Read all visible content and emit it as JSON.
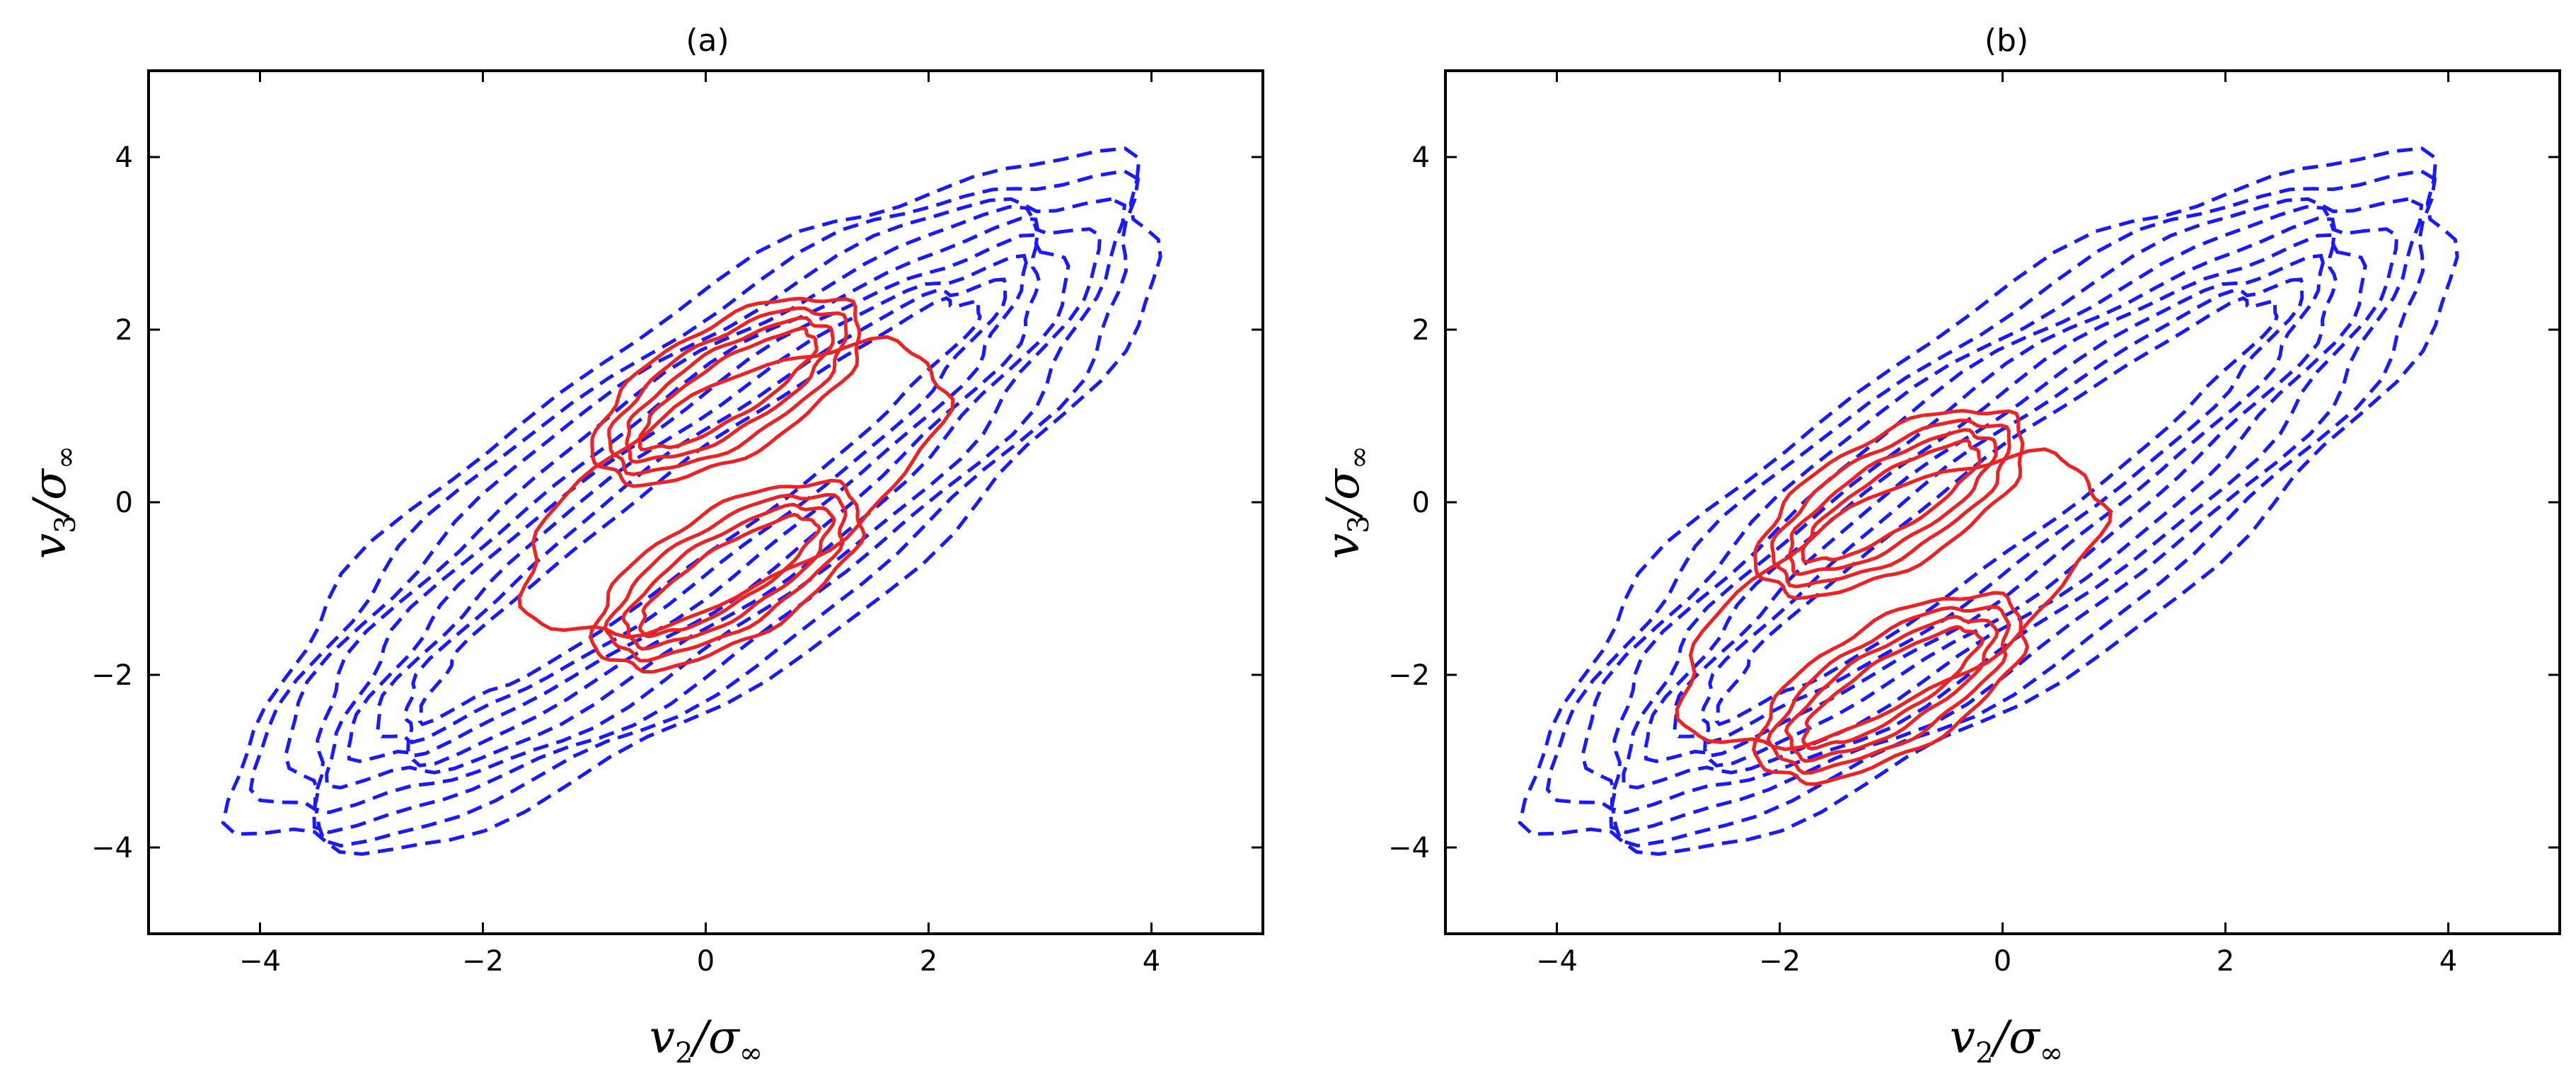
{
  "chart_data": [
    {
      "type": "contour",
      "title": "(a)",
      "xlabel": "v_2/σ_∞",
      "ylabel": "v_3/σ_∞",
      "xlim": [
        -5,
        5
      ],
      "ylim": [
        -5,
        5
      ],
      "xticks": [
        -4,
        -2,
        0,
        2,
        4
      ],
      "yticks": [
        -4,
        -2,
        0,
        2,
        4
      ],
      "series": [
        {
          "name": "blue-dashed",
          "style": "dashed",
          "color": "#1a1aff",
          "contours": [
            {
              "center": [
                -0.05,
                -0.05
              ],
              "angle": 44,
              "semi_major": 5.45,
              "semi_minor": 1.85
            },
            {
              "center": [
                -0.05,
                -0.05
              ],
              "angle": 44,
              "semi_major": 5.2,
              "semi_minor": 1.66
            },
            {
              "center": [
                -0.05,
                -0.05
              ],
              "angle": 44,
              "semi_major": 4.95,
              "semi_minor": 1.48
            },
            {
              "center": [
                -0.05,
                -0.05
              ],
              "angle": 44,
              "semi_major": 4.7,
              "semi_minor": 1.3
            },
            {
              "center": [
                -0.05,
                -0.05
              ],
              "angle": 44,
              "semi_major": 4.45,
              "semi_minor": 1.12
            },
            {
              "center": [
                -0.05,
                -0.05
              ],
              "angle": 44,
              "semi_major": 4.2,
              "semi_minor": 0.95
            },
            {
              "center": [
                -0.05,
                -0.05
              ],
              "angle": 44,
              "semi_major": 3.95,
              "semi_minor": 0.78
            },
            {
              "center": [
                -0.05,
                -0.05
              ],
              "angle": 44,
              "semi_major": 3.7,
              "semi_minor": 0.62
            },
            {
              "center": [
                -0.05,
                -0.05
              ],
              "angle": 44,
              "semi_major": 3.45,
              "semi_minor": 0.46
            }
          ]
        },
        {
          "name": "red-solid",
          "style": "solid",
          "color": "#ee2222",
          "contours": [
            {
              "center": [
                0.2,
                1.3
              ],
              "angle": 40,
              "semi_major": 1.45,
              "semi_minor": 0.7
            },
            {
              "center": [
                0.2,
                1.3
              ],
              "angle": 40,
              "semi_major": 1.3,
              "semi_minor": 0.56
            },
            {
              "center": [
                0.2,
                1.3
              ],
              "angle": 40,
              "semi_major": 1.15,
              "semi_minor": 0.43
            },
            {
              "center": [
                0.2,
                1.3
              ],
              "angle": 40,
              "semi_major": 1.0,
              "semi_minor": 0.3
            },
            {
              "center": [
                0.2,
                -0.85
              ],
              "angle": 40,
              "semi_major": 1.45,
              "semi_minor": 0.7
            },
            {
              "center": [
                0.2,
                -0.85
              ],
              "angle": 40,
              "semi_major": 1.3,
              "semi_minor": 0.56
            },
            {
              "center": [
                0.2,
                -0.85
              ],
              "angle": 40,
              "semi_major": 1.15,
              "semi_minor": 0.43
            },
            {
              "center": [
                0.2,
                -0.85
              ],
              "angle": 40,
              "semi_major": 1.0,
              "semi_minor": 0.3
            },
            {
              "center": [
                0.25,
                0.15
              ],
              "angle": 40,
              "semi_major": 2.3,
              "semi_minor": 1.05
            }
          ]
        }
      ]
    },
    {
      "type": "contour",
      "title": "(b)",
      "xlabel": "v_2/σ_∞",
      "ylabel": "v_3/σ_∞",
      "xlim": [
        -5,
        5
      ],
      "ylim": [
        -5,
        5
      ],
      "xticks": [
        -4,
        -2,
        0,
        2,
        4
      ],
      "yticks": [
        -4,
        -2,
        0,
        2,
        4
      ],
      "series": [
        {
          "name": "blue-dashed",
          "style": "dashed",
          "color": "#1a1aff",
          "contours": [
            {
              "center": [
                -0.05,
                -0.05
              ],
              "angle": 44,
              "semi_major": 5.45,
              "semi_minor": 1.85
            },
            {
              "center": [
                -0.05,
                -0.05
              ],
              "angle": 44,
              "semi_major": 5.2,
              "semi_minor": 1.66
            },
            {
              "center": [
                -0.05,
                -0.05
              ],
              "angle": 44,
              "semi_major": 4.95,
              "semi_minor": 1.48
            },
            {
              "center": [
                -0.05,
                -0.05
              ],
              "angle": 44,
              "semi_major": 4.7,
              "semi_minor": 1.3
            },
            {
              "center": [
                -0.05,
                -0.05
              ],
              "angle": 44,
              "semi_major": 4.45,
              "semi_minor": 1.12
            },
            {
              "center": [
                -0.05,
                -0.05
              ],
              "angle": 44,
              "semi_major": 4.2,
              "semi_minor": 0.95
            },
            {
              "center": [
                -0.05,
                -0.05
              ],
              "angle": 44,
              "semi_major": 3.95,
              "semi_minor": 0.78
            },
            {
              "center": [
                -0.05,
                -0.05
              ],
              "angle": 44,
              "semi_major": 3.7,
              "semi_minor": 0.62
            },
            {
              "center": [
                -0.05,
                -0.05
              ],
              "angle": 44,
              "semi_major": 3.45,
              "semi_minor": 0.46
            }
          ]
        },
        {
          "name": "red-solid",
          "style": "solid",
          "color": "#ee2222",
          "contours": [
            {
              "center": [
                -1.0,
                0.0
              ],
              "angle": 40,
              "semi_major": 1.45,
              "semi_minor": 0.7
            },
            {
              "center": [
                -1.0,
                0.0
              ],
              "angle": 40,
              "semi_major": 1.3,
              "semi_minor": 0.56
            },
            {
              "center": [
                -1.0,
                0.0
              ],
              "angle": 40,
              "semi_major": 1.15,
              "semi_minor": 0.43
            },
            {
              "center": [
                -1.0,
                0.0
              ],
              "angle": 40,
              "semi_major": 1.0,
              "semi_minor": 0.3
            },
            {
              "center": [
                -1.0,
                -2.15
              ],
              "angle": 40,
              "semi_major": 1.45,
              "semi_minor": 0.7
            },
            {
              "center": [
                -1.0,
                -2.15
              ],
              "angle": 40,
              "semi_major": 1.3,
              "semi_minor": 0.56
            },
            {
              "center": [
                -1.0,
                -2.15
              ],
              "angle": 40,
              "semi_major": 1.15,
              "semi_minor": 0.43
            },
            {
              "center": [
                -1.0,
                -2.15
              ],
              "angle": 40,
              "semi_major": 1.0,
              "semi_minor": 0.3
            },
            {
              "center": [
                -1.0,
                -1.15
              ],
              "angle": 40,
              "semi_major": 2.3,
              "semi_minor": 1.05
            }
          ]
        }
      ]
    }
  ]
}
